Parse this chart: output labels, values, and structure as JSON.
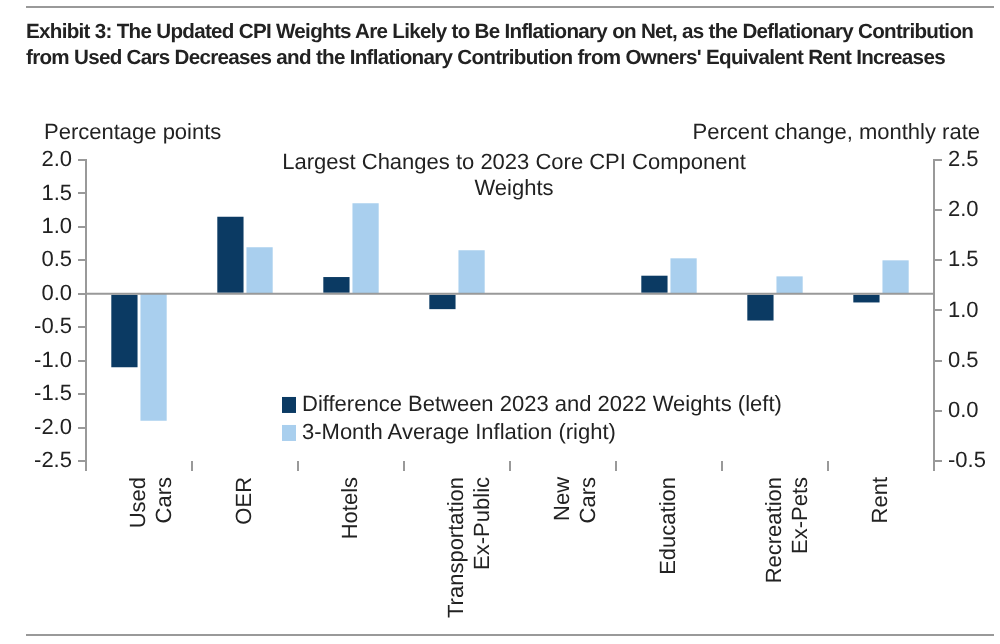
{
  "chart_data": {
    "type": "bar",
    "title": "Exhibit 3: The Updated CPI Weights Are Likely to Be Inflationary on Net, as the Deflationary Contribution from Used Cars Decreases and the Inflationary Contribution from Owners' Equivalent Rent Increases",
    "subtitle": "Largest Changes to 2023 Core CPI Component Weights",
    "ylabel": "Percentage points",
    "y2label": "Percent change, monthly rate",
    "categories": [
      "Used Cars",
      "OER",
      "Hotels",
      "Transportation Ex-Public",
      "New Cars",
      "Education",
      "Recreation Ex-Pets",
      "Rent"
    ],
    "series": [
      {
        "name": "Difference Between 2023 and 2022 Weights (left)",
        "color": "#0b3a63",
        "values": [
          -1.1,
          1.15,
          0.25,
          -0.23,
          null,
          0.27,
          -0.4,
          -0.13
        ]
      },
      {
        "name": "3-Month Average Inflation (right)",
        "color": "#a9cfee",
        "axis": "y2",
        "base": [
          1.17,
          1.17,
          1.17,
          1.17,
          null,
          1.17,
          1.17,
          1.17
        ],
        "values": [
          -1.27,
          0.46,
          0.9,
          0.43,
          null,
          0.35,
          0.17,
          0.33
        ]
      }
    ],
    "ylim": [
      -2.5,
      2.0
    ],
    "yticks": [
      -2.5,
      {
        "value": -2,
        "label": "-2.0"
      },
      -1.5,
      {
        "value": -1,
        "label": "-1.0"
      },
      -0.5,
      {
        "value": 0,
        "label": "0.0"
      },
      0.5,
      {
        "value": 1,
        "label": "1.0"
      },
      1.5,
      {
        "value": 2,
        "label": "2.0"
      }
    ],
    "y2lim": [
      -0.5,
      2.5
    ],
    "y2ticks": [
      -0.5,
      {
        "value": 0,
        "label": "0.0"
      },
      0.5,
      {
        "value": 1,
        "label": "1.0"
      },
      1.5,
      {
        "value": 2,
        "label": "2.0"
      },
      2.5
    ],
    "ref_lines": [
      {
        "axis": "y",
        "value": 0,
        "color": "#999999"
      }
    ],
    "grid": false,
    "legend": "bottom"
  }
}
